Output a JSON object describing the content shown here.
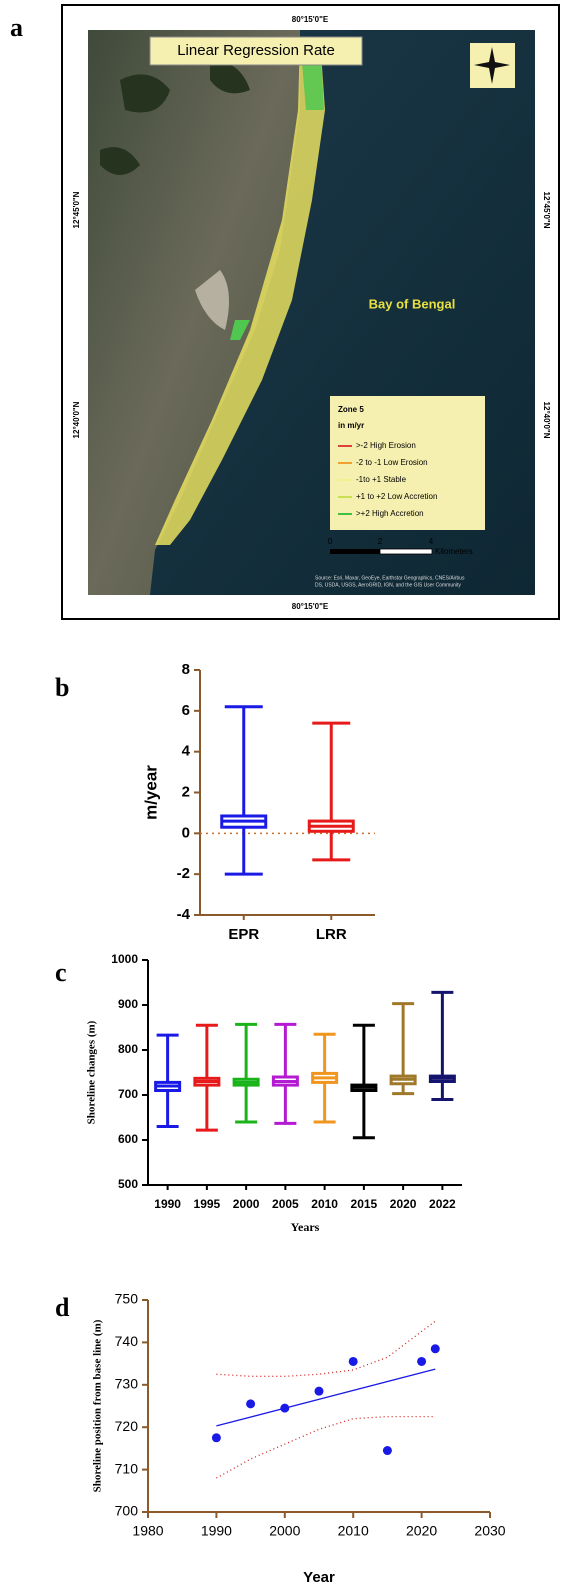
{
  "map": {
    "panel": "a",
    "title": "Linear Regression Rate",
    "top_coord": "80°15'0\"E",
    "bottom_coord": "80°15'0\"E",
    "left_coords": [
      "12°45'0\"N",
      "12°40'0\"N"
    ],
    "right_coords": [
      "12°45'0\"N",
      "12°40'0\"N"
    ],
    "sea_label": "Bay of Bengal",
    "legend": {
      "title": "Zone 5",
      "unit": "in m/yr",
      "items": [
        {
          "label": ">-2 High Erosion",
          "color": "#e0403a"
        },
        {
          "label": "-2 to -1 Low Erosion",
          "color": "#f0a030"
        },
        {
          "label": "-1to +1 Stable",
          "color": "#f4f08a"
        },
        {
          "label": "+1 to +2 Low Accretion",
          "color": "#c8e050"
        },
        {
          "label": ">+2 High Accretion",
          "color": "#40c040"
        }
      ]
    },
    "scale": {
      "ticks": [
        0,
        2,
        4
      ],
      "unit": "Kilometers"
    },
    "source": [
      "Source: Esri, Maxar, GeoEye, Earthstar Geographics, CNES/Airbus",
      "DS, USDA, USGS, AeroGRID, IGN, and the GIS User Community"
    ]
  },
  "chart_data": [
    {
      "type": "box",
      "panel": "b",
      "ylabel": "m/year",
      "categories": [
        "EPR",
        "LRR"
      ],
      "boxes": [
        {
          "min": -2,
          "q1": 0.3,
          "median": 0.6,
          "q3": 0.85,
          "max": 6.2,
          "color": "#1a1ae6"
        },
        {
          "min": -1.3,
          "q1": 0.1,
          "median": 0.35,
          "q3": 0.6,
          "max": 5.4,
          "color": "#e61a1a"
        }
      ],
      "ylim": [
        -4,
        8
      ],
      "yticks": [
        -4,
        -2,
        0,
        2,
        4,
        6,
        8
      ],
      "hline": 0,
      "hline_color": "#c8702a",
      "axis_color": "#8b5a2b",
      "grid": false
    },
    {
      "type": "box",
      "panel": "c",
      "ylabel": "Shoreline changes (m)",
      "xlabel": "Years",
      "categories": [
        "1990",
        "1995",
        "2000",
        "2005",
        "2010",
        "2015",
        "2020",
        "2022"
      ],
      "boxes": [
        {
          "min": 630,
          "q1": 710,
          "median": 720,
          "q3": 728,
          "max": 833,
          "color": "#1a1ae6"
        },
        {
          "min": 622,
          "q1": 722,
          "median": 730,
          "q3": 737,
          "max": 855,
          "color": "#e61a1a"
        },
        {
          "min": 640,
          "q1": 722,
          "median": 728,
          "q3": 735,
          "max": 857,
          "color": "#1ab41a"
        },
        {
          "min": 637,
          "q1": 722,
          "median": 730,
          "q3": 740,
          "max": 857,
          "color": "#b41ad2"
        },
        {
          "min": 640,
          "q1": 728,
          "median": 738,
          "q3": 748,
          "max": 835,
          "color": "#f0961e"
        },
        {
          "min": 605,
          "q1": 710,
          "median": 717,
          "q3": 722,
          "max": 855,
          "color": "#000000"
        },
        {
          "min": 703,
          "q1": 725,
          "median": 735,
          "q3": 742,
          "max": 903,
          "color": "#a0782a"
        },
        {
          "min": 690,
          "q1": 730,
          "median": 737,
          "q3": 742,
          "max": 928,
          "color": "#14146e"
        }
      ],
      "ylim": [
        500,
        1000
      ],
      "yticks": [
        500,
        600,
        700,
        800,
        900,
        1000
      ],
      "axis_color": "#000000",
      "grid": false
    },
    {
      "type": "scatter",
      "panel": "d",
      "ylabel": "Shoreline position from base line (m)",
      "xlabel": "Year",
      "points": {
        "x": [
          1990,
          1995,
          2000,
          2005,
          2010,
          2015,
          2020,
          2022
        ],
        "values": [
          717.5,
          725.5,
          724.5,
          728.5,
          735.5,
          714.5,
          735.5,
          738.5
        ],
        "color": "#1a1ae6"
      },
      "fit_line": {
        "x": [
          1990,
          2022
        ],
        "values": [
          720.3,
          733.7
        ],
        "color": "#1a1ae6"
      },
      "upper_band": {
        "x": [
          1990,
          1995,
          2000,
          2005,
          2010,
          2015,
          2022
        ],
        "values": [
          732.5,
          732,
          732,
          732.5,
          733.5,
          736.5,
          745
        ],
        "color": "#d02020"
      },
      "lower_band": {
        "x": [
          1990,
          1995,
          2000,
          2005,
          2010,
          2015,
          2022
        ],
        "values": [
          708,
          712.5,
          716,
          719.5,
          722,
          722.5,
          722.5
        ],
        "color": "#d02020"
      },
      "xlim": [
        1980,
        2030
      ],
      "xticks": [
        1980,
        1990,
        2000,
        2010,
        2020,
        2030
      ],
      "ylim": [
        700,
        750
      ],
      "yticks": [
        700,
        710,
        720,
        730,
        740,
        750
      ],
      "axis_color": "#8b5a2b",
      "grid": false
    }
  ]
}
